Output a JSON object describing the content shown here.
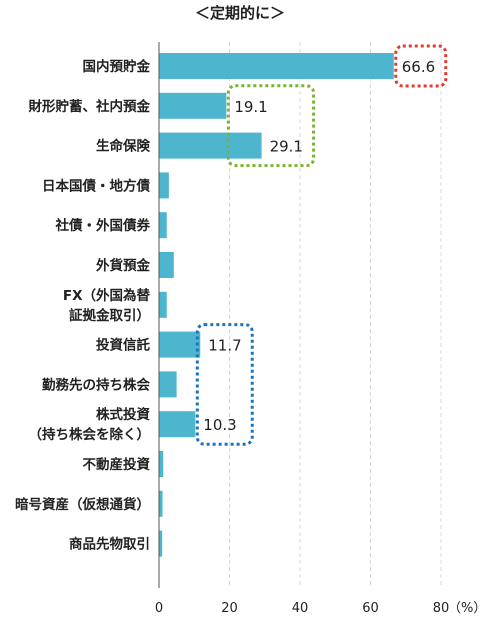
{
  "chart_data": {
    "type": "bar",
    "orientation": "horizontal",
    "title": "＜定期的に＞",
    "unit_label": "（%）",
    "categories": [
      [
        "国内預貯金"
      ],
      [
        "財形貯蓄、社内預金"
      ],
      [
        "生命保険"
      ],
      [
        "日本国債・地方債"
      ],
      [
        "社債・外国債券"
      ],
      [
        "外貨預金"
      ],
      [
        "FX（外国為替",
        "証拠金取引）"
      ],
      [
        "投資信託"
      ],
      [
        "勤務先の持ち株会"
      ],
      [
        "株式投資",
        "（持ち株会を除く）"
      ],
      [
        "不動産投資"
      ],
      [
        "暗号資産（仮想通貨）"
      ],
      [
        "商品先物取引"
      ]
    ],
    "values": [
      66.6,
      19.1,
      29.1,
      2.8,
      2.2,
      4.2,
      2.2,
      11.7,
      5.0,
      10.3,
      1.2,
      1.0,
      0.9
    ],
    "data_labels": [
      "66.6",
      "19.1",
      "29.1",
      "",
      "",
      "",
      "",
      "11.7",
      "",
      "10.3",
      "",
      "",
      ""
    ],
    "xlim": [
      0,
      80
    ],
    "xticks": [
      "0",
      "20",
      "40",
      "60",
      "80"
    ],
    "grid": "vertical-dashed",
    "bar_color": "#4db6ce",
    "highlight_groups": [
      {
        "indices": [
          0
        ],
        "color": "#e23b2e"
      },
      {
        "indices": [
          1,
          2
        ],
        "color": "#7ab32e"
      },
      {
        "indices": [
          7,
          9
        ],
        "color": "#1a73c1"
      }
    ]
  }
}
